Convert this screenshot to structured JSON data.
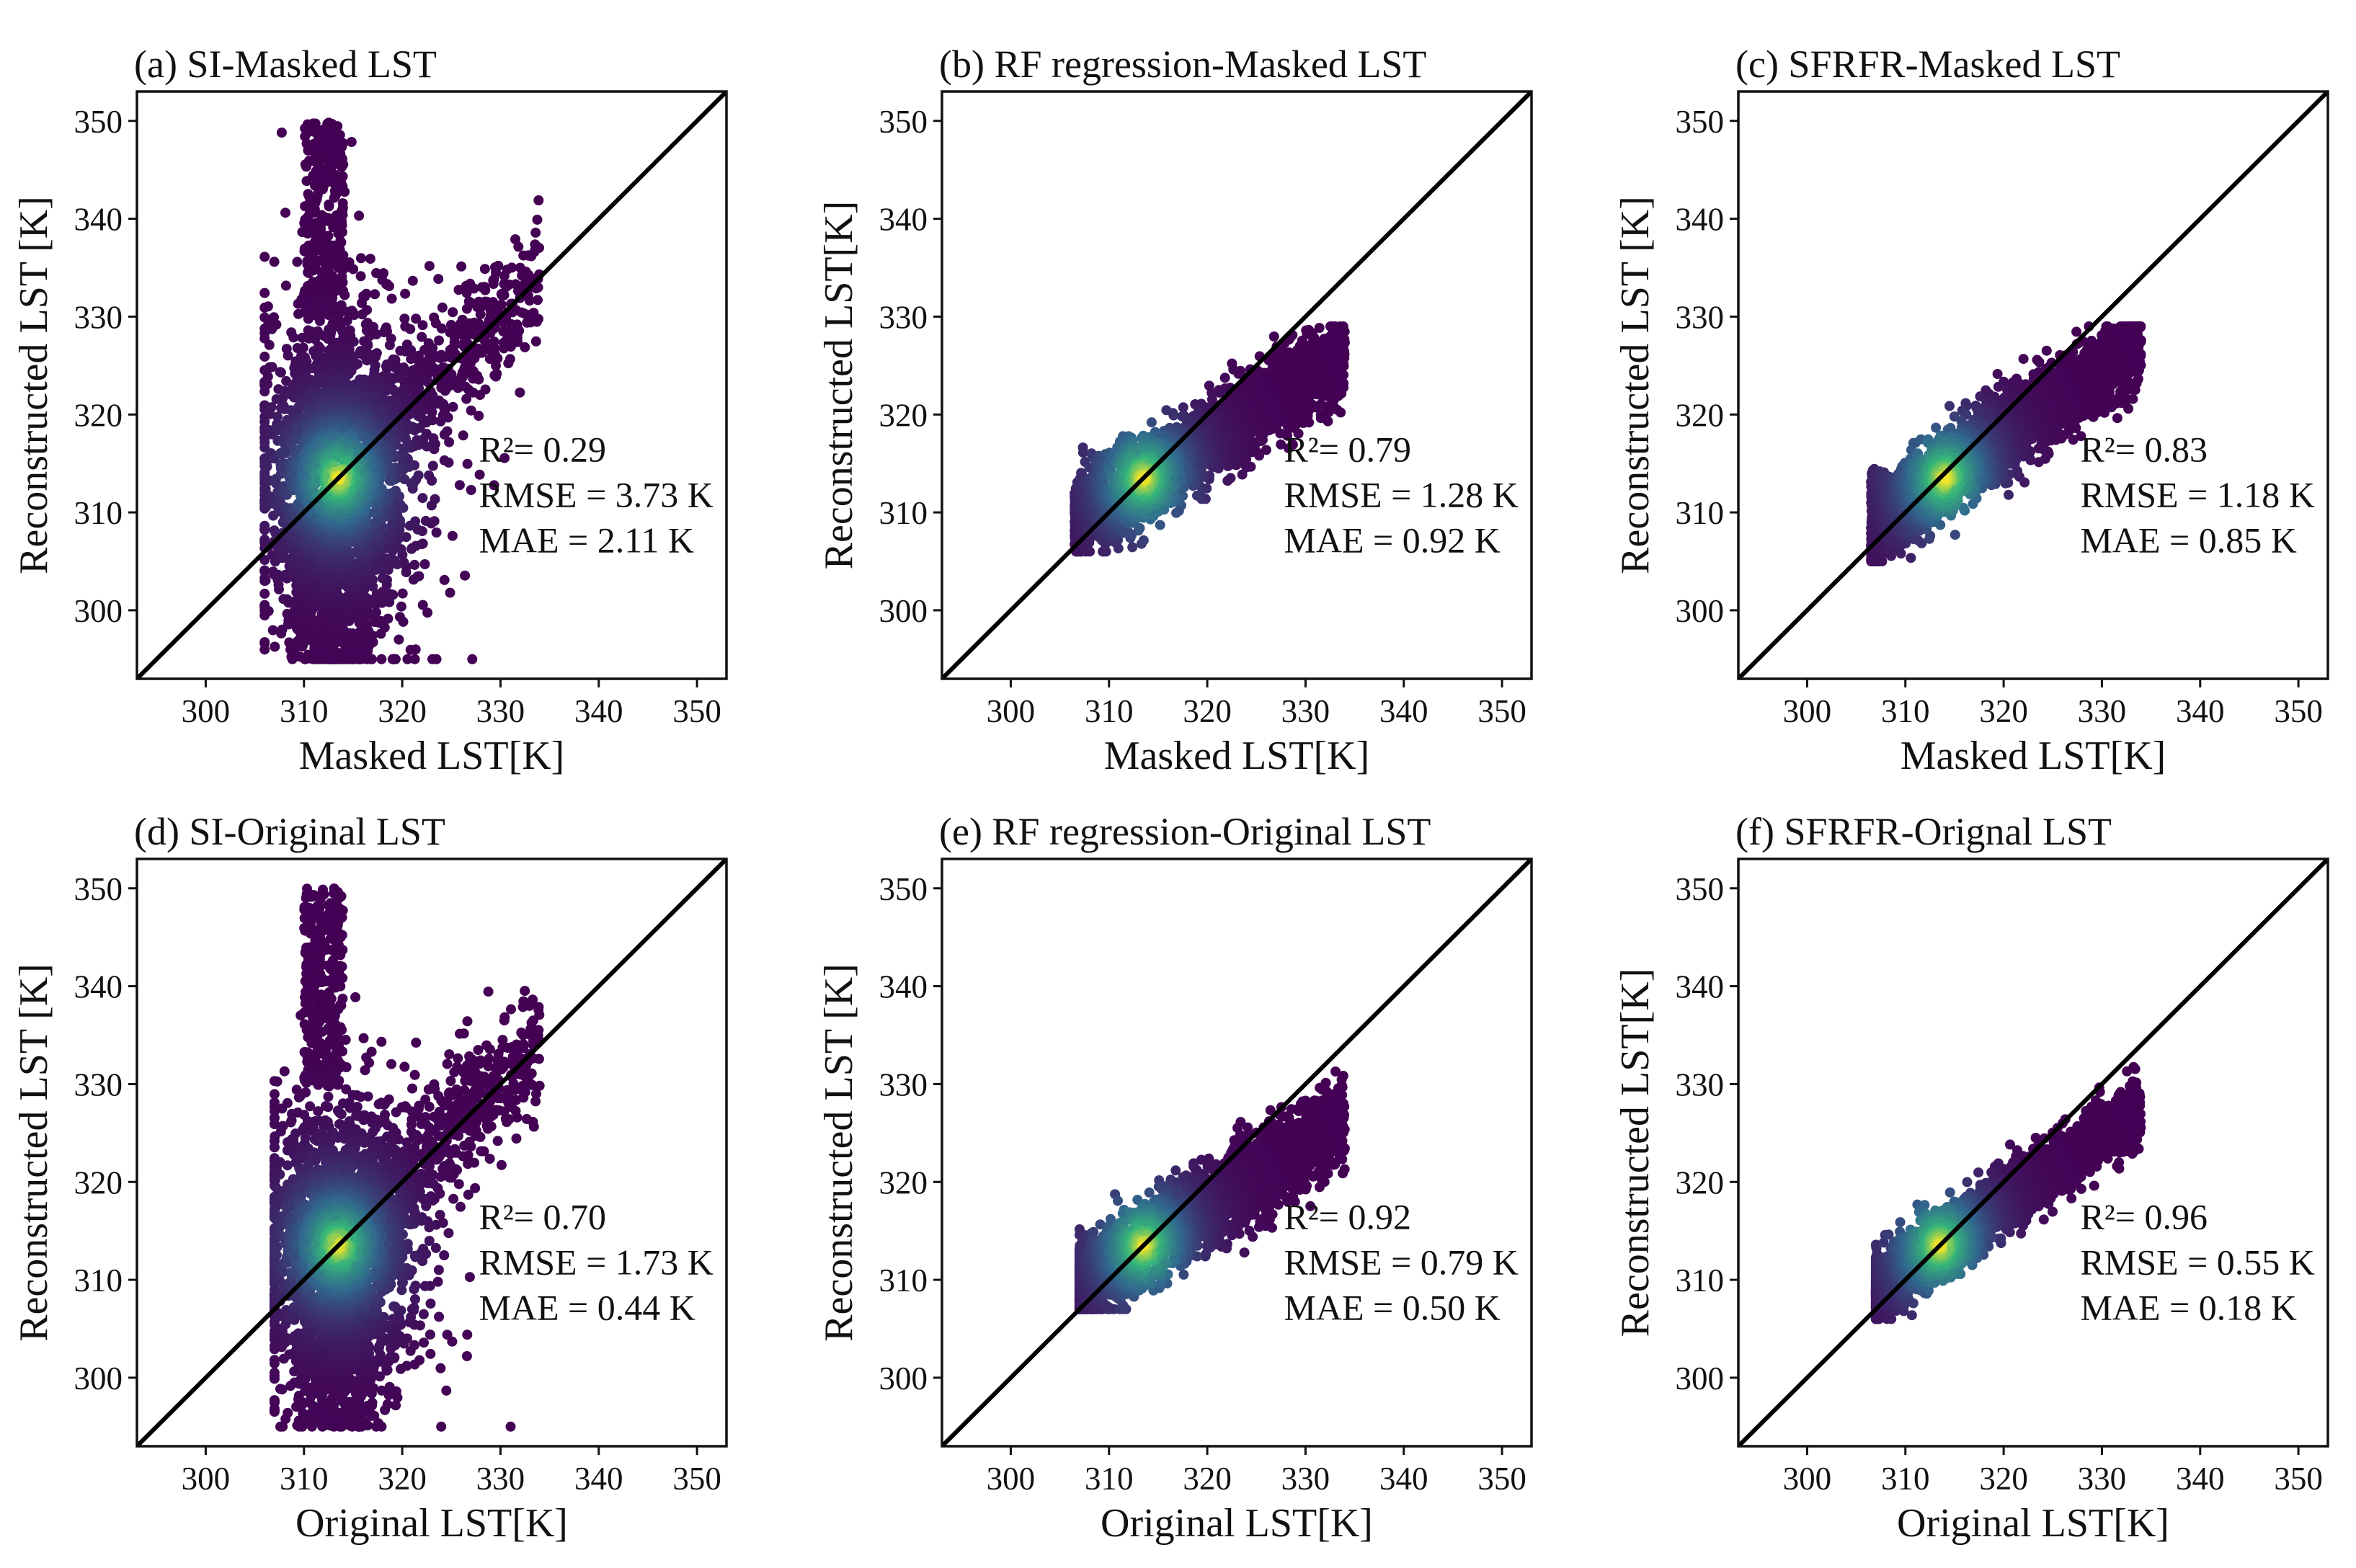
{
  "chart_data": [
    {
      "type": "scatter",
      "title": "(a) SI-Masked LST",
      "xlabel": "Masked LST[K]",
      "ylabel": "Reconstructed LST [K]",
      "xlim": [
        293,
        353
      ],
      "ylim": [
        293,
        353
      ],
      "xticks": [
        300,
        310,
        320,
        330,
        340,
        350
      ],
      "yticks": [
        300,
        310,
        320,
        330,
        340,
        350
      ],
      "reference_line": "y = x",
      "cloud": {
        "center_x": 313.5,
        "center_y": 313.5,
        "x_range": [
          306,
          334
        ],
        "y_range": [
          295,
          350
        ],
        "peak": [
          313.5,
          313.5
        ]
      },
      "stats": {
        "r2": "R²= 0.29",
        "rmse": "RMSE = 3.73 K",
        "mae": "MAE = 2.11 K"
      }
    },
    {
      "type": "scatter",
      "title": "(b) RF regression-Masked LST",
      "xlabel": "Masked LST[K]",
      "ylabel": "Reconstructed LST[K]",
      "xlim": [
        293,
        353
      ],
      "ylim": [
        293,
        353
      ],
      "xticks": [
        300,
        310,
        320,
        330,
        340,
        350
      ],
      "yticks": [
        300,
        310,
        320,
        330,
        340,
        350
      ],
      "reference_line": "y = x",
      "cloud": {
        "center_x": 317,
        "center_y": 316,
        "x_range": [
          306,
          334
        ],
        "y_range": [
          306,
          329
        ],
        "peak": [
          313.5,
          313.5
        ]
      },
      "stats": {
        "r2": "R²= 0.79",
        "rmse": "RMSE = 1.28 K",
        "mae": "MAE = 0.92 K"
      }
    },
    {
      "type": "scatter",
      "title": "(c) SFRFR-Masked LST",
      "xlabel": "Masked LST[K]",
      "ylabel": "Reconstructed LST [K]",
      "xlim": [
        293,
        353
      ],
      "ylim": [
        293,
        353
      ],
      "xticks": [
        300,
        310,
        320,
        330,
        340,
        350
      ],
      "yticks": [
        300,
        310,
        320,
        330,
        340,
        350
      ],
      "reference_line": "y = x",
      "cloud": {
        "center_x": 317,
        "center_y": 316.5,
        "x_range": [
          306,
          334
        ],
        "y_range": [
          305,
          329
        ],
        "peak": [
          314,
          313.5
        ]
      },
      "stats": {
        "r2": "R²= 0.83",
        "rmse": "RMSE = 1.18 K",
        "mae": "MAE = 0.85 K"
      }
    },
    {
      "type": "scatter",
      "title": "(d) SI-Original LST",
      "xlabel": "Original LST[K]",
      "ylabel": "Reconstructed LST [K]",
      "xlim": [
        293,
        353
      ],
      "ylim": [
        293,
        353
      ],
      "xticks": [
        300,
        310,
        320,
        330,
        340,
        350
      ],
      "yticks": [
        300,
        310,
        320,
        330,
        340,
        350
      ],
      "reference_line": "y = x",
      "cloud": {
        "center_x": 313.5,
        "center_y": 313.5,
        "x_range": [
          307,
          334
        ],
        "y_range": [
          295,
          350
        ],
        "peak": [
          313.5,
          313.5
        ]
      },
      "stats": {
        "r2": "R²= 0.70",
        "rmse": "RMSE = 1.73 K",
        "mae": "MAE = 0.44 K"
      }
    },
    {
      "type": "scatter",
      "title": "(e) RF regression-Original LST",
      "xlabel": "Original LST[K]",
      "ylabel": "Reconstructed LST [K]",
      "xlim": [
        293,
        353
      ],
      "ylim": [
        293,
        353
      ],
      "xticks": [
        300,
        310,
        320,
        330,
        340,
        350
      ],
      "yticks": [
        300,
        310,
        320,
        330,
        340,
        350
      ],
      "reference_line": "y = x",
      "cloud": {
        "center_x": 318,
        "center_y": 317,
        "x_range": [
          307,
          334
        ],
        "y_range": [
          307,
          332
        ],
        "peak": [
          313.5,
          313.5
        ]
      },
      "stats": {
        "r2": "R²= 0.92",
        "rmse": "RMSE = 0.79 K",
        "mae": "MAE = 0.50 K"
      }
    },
    {
      "type": "scatter",
      "title": "(f) SFRFR-Orignal LST",
      "xlabel": "Original LST[K]",
      "ylabel": "Reconstructed LST[K]",
      "xlim": [
        293,
        353
      ],
      "ylim": [
        293,
        353
      ],
      "xticks": [
        300,
        310,
        320,
        330,
        340,
        350
      ],
      "yticks": [
        300,
        310,
        320,
        330,
        340,
        350
      ],
      "reference_line": "y = x",
      "cloud": {
        "center_x": 318,
        "center_y": 317.5,
        "x_range": [
          307,
          334
        ],
        "y_range": [
          306,
          334
        ],
        "peak": [
          313.5,
          313.5
        ]
      },
      "stats": {
        "r2": "R²= 0.96",
        "rmse": "RMSE = 0.55 K",
        "mae": "MAE = 0.18 K"
      }
    }
  ],
  "colors": {
    "low": "#440154",
    "mid": "#31688e",
    "high": "#35b779",
    "peak": "#fde725",
    "line": "#000000"
  }
}
